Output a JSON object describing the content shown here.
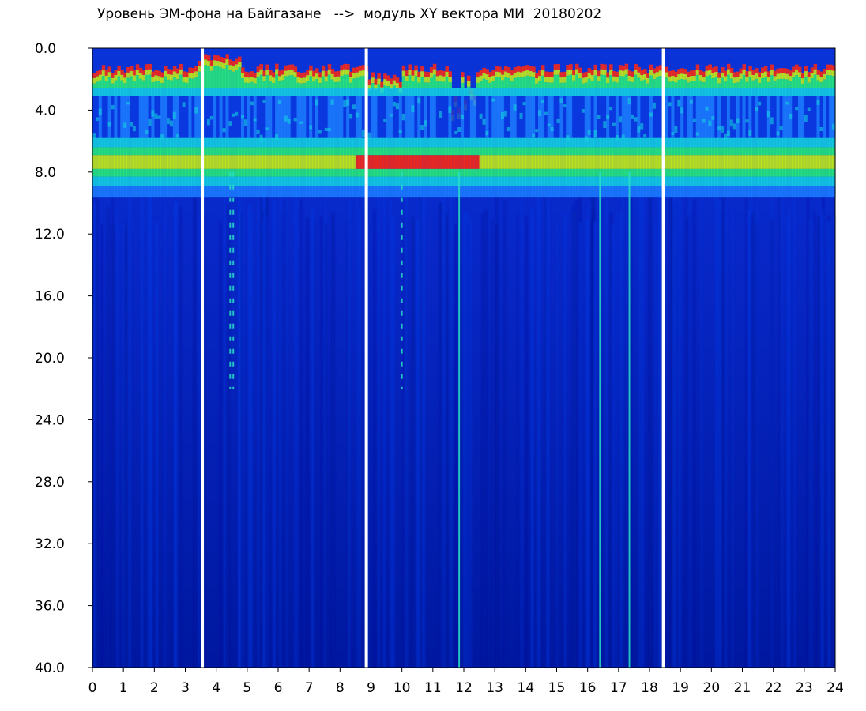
{
  "chart_data": {
    "type": "heatmap",
    "title": "Уровень ЭМ-фона на Байгазане   -->  модуль XY вектора МИ  20180202",
    "xlabel": "",
    "ylabel": "",
    "xlim": [
      0,
      24
    ],
    "ylim": [
      40.0,
      0.0
    ],
    "y_axis_inverted": true,
    "x_tick_labels": [
      "0",
      "1",
      "2",
      "3",
      "4",
      "5",
      "6",
      "7",
      "8",
      "9",
      "10",
      "11",
      "12",
      "13",
      "14",
      "15",
      "16",
      "17",
      "18",
      "19",
      "20",
      "21",
      "22",
      "23",
      "24"
    ],
    "y_tick_labels": [
      "0.0",
      "4.0",
      "8.0",
      "12.0",
      "16.0",
      "20.0",
      "24.0",
      "28.0",
      "32.0",
      "36.0",
      "40.0"
    ],
    "colormap": [
      "#0018a8",
      "#0a3ae0",
      "#1c7cff",
      "#14d2e0",
      "#28ee78",
      "#c8f010",
      "#ff2810"
    ],
    "background_color": "#0018a8",
    "bands": [
      {
        "y_from": 1.0,
        "y_to": 3.0,
        "level": "high (red/yellow/green)"
      },
      {
        "y_from": 3.0,
        "y_to": 6.0,
        "level": "medium (blue/cyan)"
      },
      {
        "y_from": 6.0,
        "y_to": 8.5,
        "level": "high (green/yellow/red)"
      },
      {
        "y_from": 8.5,
        "y_to": 40.0,
        "level": "low (dark blue)"
      }
    ],
    "gaps_x": [
      3.55,
      8.85,
      18.45
    ],
    "vertical_features_x": [
      4.45,
      4.55,
      10.0,
      11.85,
      16.4,
      17.35,
      18.45
    ]
  }
}
